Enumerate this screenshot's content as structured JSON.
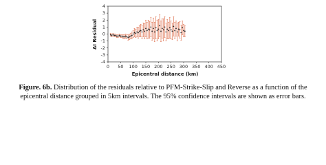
{
  "chart_data": {
    "type": "errorbar",
    "xlabel": "Epicentral distance (km)",
    "ylabel": "ΔI Residual",
    "xlim": [
      0,
      450
    ],
    "xticks": [
      0,
      50,
      100,
      150,
      200,
      250,
      300,
      350,
      400,
      450
    ],
    "ylim": [
      -4,
      4
    ],
    "yticks": [
      -4,
      -3,
      -2,
      -1,
      0,
      1,
      2,
      3,
      4
    ],
    "grid": false,
    "series": [
      {
        "color": "#e07a5a",
        "marker_color": "#222222",
        "x": [
          10,
          15,
          20,
          25,
          30,
          35,
          40,
          45,
          50,
          55,
          60,
          65,
          70,
          75,
          80,
          85,
          90,
          95,
          100,
          105,
          110,
          115,
          120,
          125,
          130,
          135,
          140,
          145,
          150,
          155,
          160,
          165,
          170,
          175,
          180,
          185,
          190,
          195,
          200,
          205,
          210,
          215,
          220,
          225,
          230,
          235,
          240,
          245,
          250,
          255,
          260,
          265,
          270,
          275,
          280,
          285,
          290,
          295,
          300,
          305
        ],
        "values": [
          -0.1,
          -0.2,
          -0.1,
          -0.2,
          -0.2,
          -0.3,
          -0.3,
          -0.2,
          -0.3,
          -0.3,
          -0.4,
          -0.4,
          -0.3,
          -0.4,
          -0.5,
          -0.4,
          -0.3,
          -0.2,
          0,
          0.2,
          0.1,
          0.3,
          0.2,
          0.4,
          0.5,
          0.3,
          0.6,
          0.4,
          0.8,
          0.5,
          0.7,
          0.6,
          1.0,
          0.4,
          0.8,
          0.3,
          0.9,
          0.5,
          0.7,
          1.2,
          0.4,
          0.8,
          0.6,
          1.0,
          0.3,
          0.7,
          0.5,
          0.9,
          0.6,
          0.4,
          1.1,
          0.5,
          0.8,
          0.3,
          0.7,
          0.6,
          0.2,
          0.9,
          0.5,
          0.4
        ],
        "errors": [
          0.2,
          0.2,
          0.2,
          0.2,
          0.2,
          0.2,
          0.2,
          0.2,
          0.2,
          0.2,
          0.3,
          0.3,
          0.3,
          0.3,
          0.4,
          0.4,
          0.4,
          0.5,
          0.5,
          0.6,
          0.6,
          0.7,
          0.8,
          0.8,
          0.9,
          1.0,
          1.0,
          1.1,
          1.2,
          1.2,
          1.3,
          1.2,
          1.4,
          1.3,
          1.5,
          1.4,
          1.6,
          1.5,
          1.4,
          1.6,
          1.5,
          1.4,
          1.6,
          1.5,
          1.3,
          1.4,
          1.2,
          1.5,
          1.3,
          1.2,
          1.4,
          1.2,
          1.1,
          1.3,
          1.0,
          1.2,
          1.1,
          1.0,
          0.9,
          0.8
        ]
      }
    ]
  },
  "caption": {
    "label": "Figure. 6b.",
    "text": "Distribution of the residuals relative to PFM-Strike-Slip and Reverse as a function of the epicentral distance grouped in 5km intervals. The 95% confidence intervals are shown as error bars."
  }
}
